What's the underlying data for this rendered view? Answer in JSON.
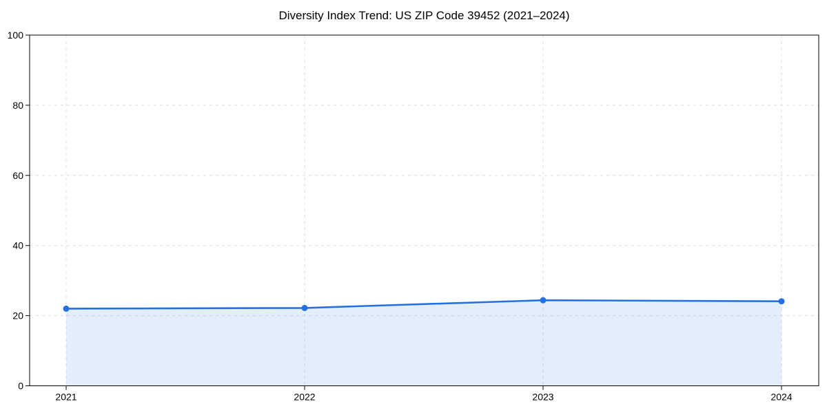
{
  "chart_data": {
    "type": "line",
    "title": "Diversity Index Trend: US ZIP Code 39452 (2021–2024)",
    "x": [
      "2021",
      "2022",
      "2023",
      "2024"
    ],
    "values": [
      22.0,
      22.2,
      24.4,
      24.1
    ],
    "xlabel": "",
    "ylabel": "",
    "ylim": [
      0,
      100
    ],
    "yticks": [
      0,
      20,
      40,
      60,
      80,
      100
    ],
    "xticks": [
      "2021",
      "2022",
      "2023",
      "2024"
    ],
    "grid": "dashed",
    "legend": "none",
    "area_fill_to_zero": true,
    "colors": {
      "line": "#2570E0",
      "marker": "#2570E0",
      "area_fill": "rgba(37,112,224,0.12)",
      "grid": "#dcdcdc",
      "axis": "#000000",
      "text": "#000000",
      "background": "#ffffff"
    }
  }
}
